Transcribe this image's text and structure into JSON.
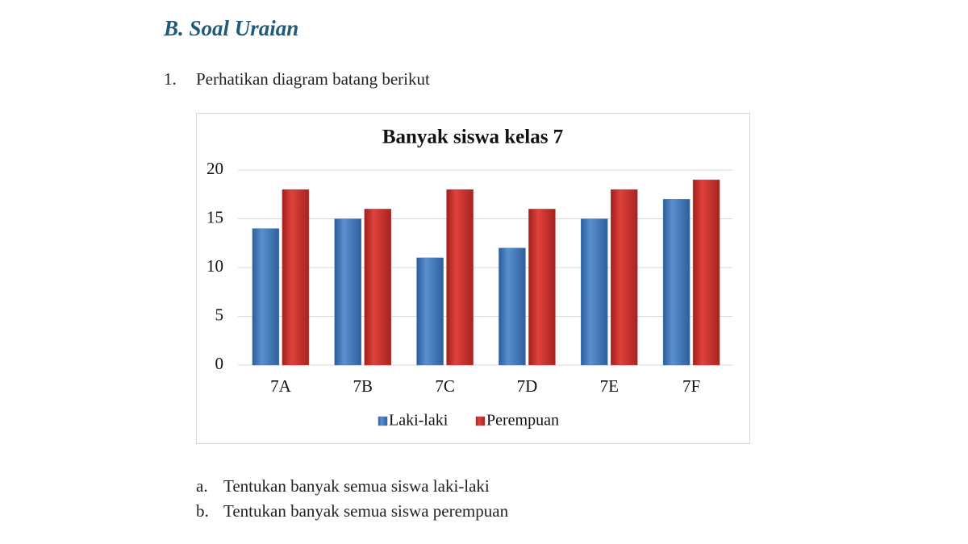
{
  "header": {
    "title": "B.  Soal Uraian"
  },
  "question": {
    "number": "1.",
    "text": "Perhatikan diagram batang berikut"
  },
  "chart_data": {
    "type": "bar",
    "title": "Banyak siswa kelas 7",
    "categories": [
      "7A",
      "7B",
      "7C",
      "7D",
      "7E",
      "7F"
    ],
    "series": [
      {
        "name": "Laki-laki",
        "color": "#4f81bd",
        "values": [
          14,
          15,
          11,
          12,
          15,
          17
        ]
      },
      {
        "name": "Perempuan",
        "color": "#c0504d",
        "values": [
          18,
          16,
          18,
          16,
          18,
          19
        ]
      }
    ],
    "ylim": [
      0,
      20
    ],
    "yticks": [
      0,
      5,
      10,
      15,
      20
    ],
    "grid": true,
    "legend": "bottom"
  },
  "subquestions": [
    {
      "label": "a.",
      "text": "Tentukan banyak semua siswa laki-laki"
    },
    {
      "label": "b.",
      "text": "Tentukan banyak semua siswa perempuan"
    }
  ]
}
